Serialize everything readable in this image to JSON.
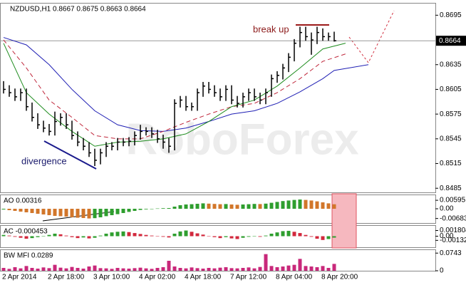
{
  "chart_data": [
    {
      "type": "hlc",
      "title": "NZDUSD,H1 0.8667 0.8675 0.8663 0.8664",
      "watermark": "RoboForex",
      "annotations": [
        "break up",
        "divergence"
      ],
      "categories": [
        "2 Apr 2014",
        null,
        null,
        null,
        null,
        null,
        null,
        null,
        "2 Apr 18:00",
        null,
        null,
        null,
        null,
        null,
        null,
        null,
        "3 Apr 10:00",
        null,
        null,
        null,
        null,
        null,
        null,
        null,
        "4 Apr 02:00",
        null,
        null,
        null,
        null,
        null,
        null,
        null,
        "4 Apr 18:00",
        null,
        null,
        null,
        null,
        null,
        null,
        null,
        "7 Apr 12:00",
        null,
        null,
        null,
        null,
        null,
        null,
        null,
        "8 Apr 04:00",
        null,
        null,
        null,
        null,
        null,
        null,
        null,
        "8 Apr 20:00",
        null,
        null
      ],
      "high": [
        0.8615,
        0.861,
        0.8606,
        0.8606,
        0.8606,
        0.8589,
        0.8576,
        0.8567,
        0.8563,
        0.8578,
        0.8576,
        0.8576,
        0.8567,
        0.8554,
        0.8546,
        0.8541,
        0.8533,
        0.8533,
        0.8541,
        0.8541,
        0.8546,
        0.8546,
        0.8547,
        0.8554,
        0.8562,
        0.8559,
        0.8559,
        0.8556,
        0.855,
        0.8546,
        0.8593,
        0.8597,
        0.8597,
        0.8589,
        0.8606,
        0.8614,
        0.8614,
        0.861,
        0.8606,
        0.861,
        0.861,
        0.8597,
        0.8601,
        0.8606,
        0.8606,
        0.8601,
        0.8606,
        0.8623,
        0.8627,
        0.8636,
        0.8649,
        0.8666,
        0.8681,
        0.8681,
        0.8674,
        0.8681,
        0.8679,
        0.8674,
        0.8675
      ],
      "low": [
        0.86,
        0.8596,
        0.8591,
        0.8591,
        0.8579,
        0.8566,
        0.8557,
        0.8553,
        0.8549,
        0.8549,
        0.8561,
        0.8557,
        0.8544,
        0.8536,
        0.8531,
        0.8523,
        0.8512,
        0.8514,
        0.8523,
        0.8531,
        0.8531,
        0.8536,
        0.8536,
        0.8537,
        0.8544,
        0.8549,
        0.8546,
        0.854,
        0.8533,
        0.8528,
        0.8531,
        0.8583,
        0.8579,
        0.8579,
        0.8579,
        0.8596,
        0.86,
        0.8596,
        0.8591,
        0.8591,
        0.8587,
        0.8583,
        0.8583,
        0.8591,
        0.8591,
        0.8587,
        0.8587,
        0.8596,
        0.8613,
        0.8617,
        0.8626,
        0.8639,
        0.8656,
        0.8664,
        0.8647,
        0.866,
        0.8664,
        0.8664,
        0.8663
      ],
      "close": [
        0.8605,
        0.8601,
        0.8596,
        0.8601,
        0.8584,
        0.8571,
        0.8562,
        0.8558,
        0.8554,
        0.8566,
        0.8571,
        0.8562,
        0.8549,
        0.8541,
        0.8536,
        0.8528,
        0.8519,
        0.8528,
        0.8536,
        0.8536,
        0.8541,
        0.8541,
        0.8542,
        0.8549,
        0.8554,
        0.8554,
        0.8551,
        0.8545,
        0.8541,
        0.8536,
        0.8588,
        0.8592,
        0.8584,
        0.8584,
        0.8601,
        0.8609,
        0.8605,
        0.8601,
        0.8596,
        0.8605,
        0.8592,
        0.8588,
        0.8596,
        0.8601,
        0.8596,
        0.8592,
        0.8601,
        0.8618,
        0.8622,
        0.8631,
        0.8644,
        0.8661,
        0.8674,
        0.8669,
        0.8665,
        0.8674,
        0.8669,
        0.8669,
        0.8664
      ],
      "color": "#000000",
      "series": [
        {
          "color": "#1f1fb4",
          "dash": false,
          "x": [
            0,
            4,
            8,
            12,
            16,
            20,
            24,
            28,
            32,
            36,
            40,
            44,
            48,
            52,
            56,
            58,
            64
          ],
          "values": [
            0.8668,
            0.8659,
            0.8635,
            0.8605,
            0.8579,
            0.8562,
            0.8555,
            0.8554,
            0.8558,
            0.8566,
            0.8575,
            0.8579,
            0.8588,
            0.8602,
            0.8618,
            0.8628,
            0.8635
          ]
        },
        {
          "color": "#c0283c",
          "dash": true,
          "x": [
            0,
            4,
            8,
            12,
            16,
            20,
            24,
            28,
            32,
            36,
            40,
            44,
            48,
            52,
            56,
            60
          ],
          "values": [
            0.8665,
            0.8631,
            0.8592,
            0.8571,
            0.8549,
            0.8545,
            0.8545,
            0.8554,
            0.8565,
            0.8575,
            0.8584,
            0.8588,
            0.8601,
            0.8618,
            0.8639,
            0.8648
          ]
        },
        {
          "color": "#1e8c1e",
          "dash": false,
          "x": [
            0,
            4,
            8,
            12,
            16,
            20,
            24,
            28,
            32,
            36,
            40,
            44,
            48,
            52,
            56,
            60
          ],
          "values": [
            0.8661,
            0.8601,
            0.8575,
            0.8554,
            0.8536,
            0.8541,
            0.8542,
            0.8545,
            0.8551,
            0.8566,
            0.8584,
            0.8592,
            0.8609,
            0.8631,
            0.8654,
            0.8661
          ]
        }
      ],
      "current_price": 0.8664,
      "ylim": [
        0.848,
        0.871
      ],
      "yticks": [
        0.8695,
        0.8635,
        0.8605,
        0.8575,
        0.8545,
        0.8515,
        0.8485
      ]
    },
    {
      "type": "osc",
      "title": "AO 0.00316",
      "up_color": "#2e9e2e",
      "down_color": "#d2762a",
      "values": [
        -0.0005,
        -0.001,
        -0.0015,
        -0.002,
        -0.0025,
        -0.003,
        -0.0035,
        -0.004,
        -0.0045,
        -0.005,
        -0.0052,
        -0.0055,
        -0.006,
        -0.0063,
        -0.0065,
        -0.0068,
        -0.0066,
        -0.006,
        -0.0052,
        -0.0045,
        -0.0038,
        -0.003,
        -0.0022,
        -0.0015,
        -0.0008,
        -0.0004,
        -0.0001,
        0.0002,
        0.0004,
        0.0005,
        0.0015,
        0.0025,
        0.003,
        0.0032,
        0.0035,
        0.0038,
        0.0036,
        0.0034,
        0.0032,
        0.0033,
        0.003,
        0.0028,
        0.003,
        0.0032,
        0.0034,
        0.0033,
        0.0036,
        0.0042,
        0.0048,
        0.0054,
        0.0058,
        0.0062,
        0.0065,
        0.0062,
        0.0058,
        0.0052,
        0.0045,
        0.0038,
        0.00316
      ],
      "ylim": [
        -0.01,
        0.01
      ],
      "yticks": [
        0.00595,
        {
          "value": 0,
          "label": "0.00"
        },
        -0.00683
      ]
    },
    {
      "type": "osc",
      "title": "AC -0.000453",
      "up_color": "#2e9e2e",
      "down_color": "#d2283c",
      "values": [
        0.0004,
        0.0002,
        -0.0002,
        -0.0005,
        -0.0008,
        -0.0006,
        -0.0003,
        0.0001,
        0.0004,
        0.0008,
        0.0006,
        0.0002,
        -0.0003,
        -0.0006,
        -0.0004,
        -0.0007,
        -0.0005,
        0.0002,
        0.0008,
        0.0012,
        0.0014,
        0.0015,
        0.0013,
        0.001,
        0.0007,
        0.0004,
        0.0002,
        0.0001,
        -0.0002,
        -0.0004,
        0.0008,
        0.0015,
        0.0018,
        0.0014,
        0.0009,
        0.0005,
        0.0001,
        -0.0003,
        -0.0006,
        -0.0003,
        -0.0007,
        -0.0009,
        -0.0005,
        -0.0002,
        0.0001,
        -0.0002,
        0.0002,
        0.0008,
        0.0012,
        0.0016,
        0.0017,
        0.0014,
        0.001,
        0.0004,
        -0.0002,
        -0.0008,
        -0.0012,
        -0.0009,
        -0.000453
      ],
      "ylim": [
        -0.0035,
        0.0035
      ],
      "yticks": [
        0.001804,
        {
          "value": 0,
          "label": "0.00"
        },
        -0.00132
      ]
    },
    {
      "type": "mfi",
      "title": "BW MFI 0.0289",
      "color": "#c8287a",
      "values": [
        0.012,
        0.008,
        0.015,
        0.01,
        0.02,
        0.012,
        0.009,
        0.014,
        0.011,
        0.025,
        0.013,
        0.01,
        0.016,
        0.012,
        0.009,
        0.018,
        0.022,
        0.011,
        0.01,
        0.008,
        0.012,
        0.01,
        0.009,
        0.011,
        0.013,
        0.01,
        0.008,
        0.012,
        0.015,
        0.042,
        0.018,
        0.012,
        0.01,
        0.014,
        0.011,
        0.009,
        0.012,
        0.01,
        0.013,
        0.015,
        0.011,
        0.01,
        0.012,
        0.014,
        0.01,
        0.016,
        0.07,
        0.02,
        0.015,
        0.018,
        0.022,
        0.025,
        0.05,
        0.02,
        0.018,
        0.015,
        0.02,
        0.012,
        0.0289
      ],
      "ylim": [
        0,
        0.09
      ],
      "yticks": [
        0.0743,
        0
      ]
    }
  ]
}
